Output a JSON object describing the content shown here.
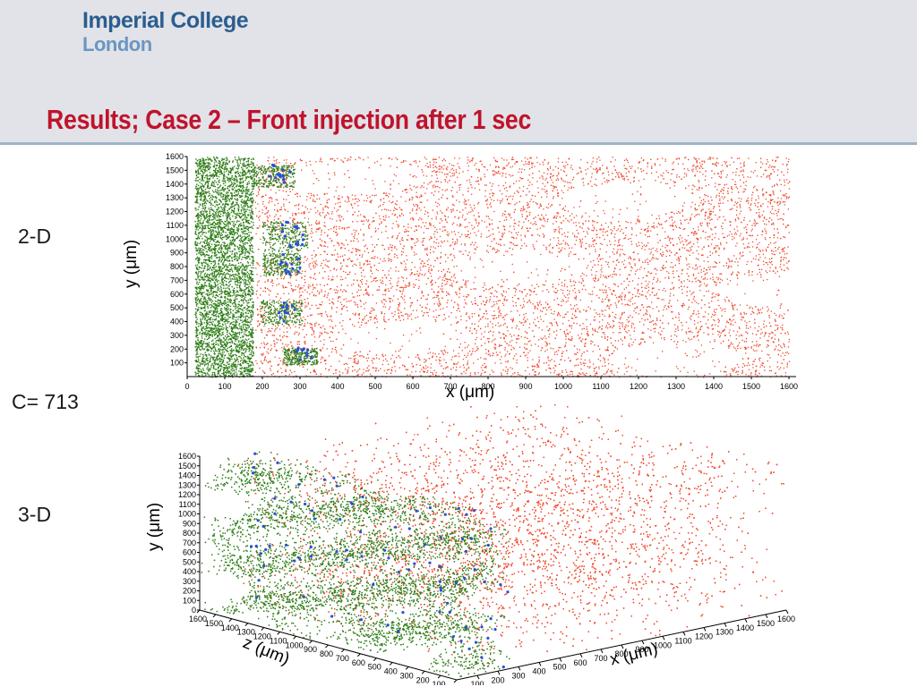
{
  "header": {
    "logo_line1": "Imperial College",
    "logo_line2": "London",
    "title": "Results; Case 2 – Front injection after 1 sec"
  },
  "labels": {
    "two_d": "2-D",
    "c_value": "C= 713",
    "three_d": "3-D"
  },
  "colors": {
    "red_particles": "#f04a2e",
    "green_particles": "#2e7d16",
    "blue_particles": "#2a4fd6",
    "title_red": "#c0132c",
    "logo_blue": "#2b5d8f"
  },
  "chart_data": [
    {
      "type": "scatter",
      "view": "2-D",
      "xlabel": "x (μm)",
      "ylabel": "y (μm)",
      "xlim": [
        0,
        1600
      ],
      "ylim": [
        0,
        1600
      ],
      "x_ticks": [
        "0",
        "100",
        "200",
        "300",
        "400",
        "500",
        "600",
        "700",
        "800",
        "900",
        "1000",
        "1100",
        "1200",
        "1300",
        "1400",
        "1500",
        "1600"
      ],
      "y_ticks": [
        "100",
        "200",
        "300",
        "400",
        "500",
        "600",
        "700",
        "800",
        "900",
        "1000",
        "1100",
        "1200",
        "1300",
        "1400",
        "1500",
        "1600"
      ],
      "series": [
        {
          "color": "#f04a2e",
          "x_range": [
            180,
            1600
          ],
          "y_range": [
            0,
            1600
          ]
        },
        {
          "color": "#2e7d16",
          "x_range": [
            20,
            330
          ],
          "y_range": [
            0,
            1600
          ]
        },
        {
          "color": "#2a4fd6",
          "x_range": [
            180,
            340
          ],
          "y_range": [
            0,
            1600
          ]
        }
      ]
    },
    {
      "type": "scatter",
      "view": "3-D",
      "xlabel": "x (μm)",
      "ylabel": "y (μm)",
      "zlabel": "z (μm)",
      "xlim": [
        0,
        1600
      ],
      "ylim": [
        0,
        1600
      ],
      "zlim": [
        0,
        1600
      ],
      "x_ticks": [
        "100",
        "200",
        "300",
        "400",
        "500",
        "600",
        "700",
        "800",
        "900",
        "1000",
        "1100",
        "1200",
        "1300",
        "1400",
        "1500",
        "1600"
      ],
      "y_ticks": [
        "0",
        "100",
        "200",
        "300",
        "400",
        "500",
        "600",
        "700",
        "800",
        "900",
        "1000",
        "1100",
        "1200",
        "1300",
        "1400",
        "1500",
        "1600"
      ],
      "z_ticks": [
        "1600",
        "1500",
        "1400",
        "1300",
        "1200",
        "1100",
        "1000",
        "900",
        "800",
        "700",
        "600",
        "500",
        "400",
        "300",
        "200",
        "100",
        "0"
      ],
      "series": [
        {
          "color": "#f04a2e"
        },
        {
          "color": "#2e7d16"
        },
        {
          "color": "#2a4fd6"
        }
      ]
    }
  ]
}
